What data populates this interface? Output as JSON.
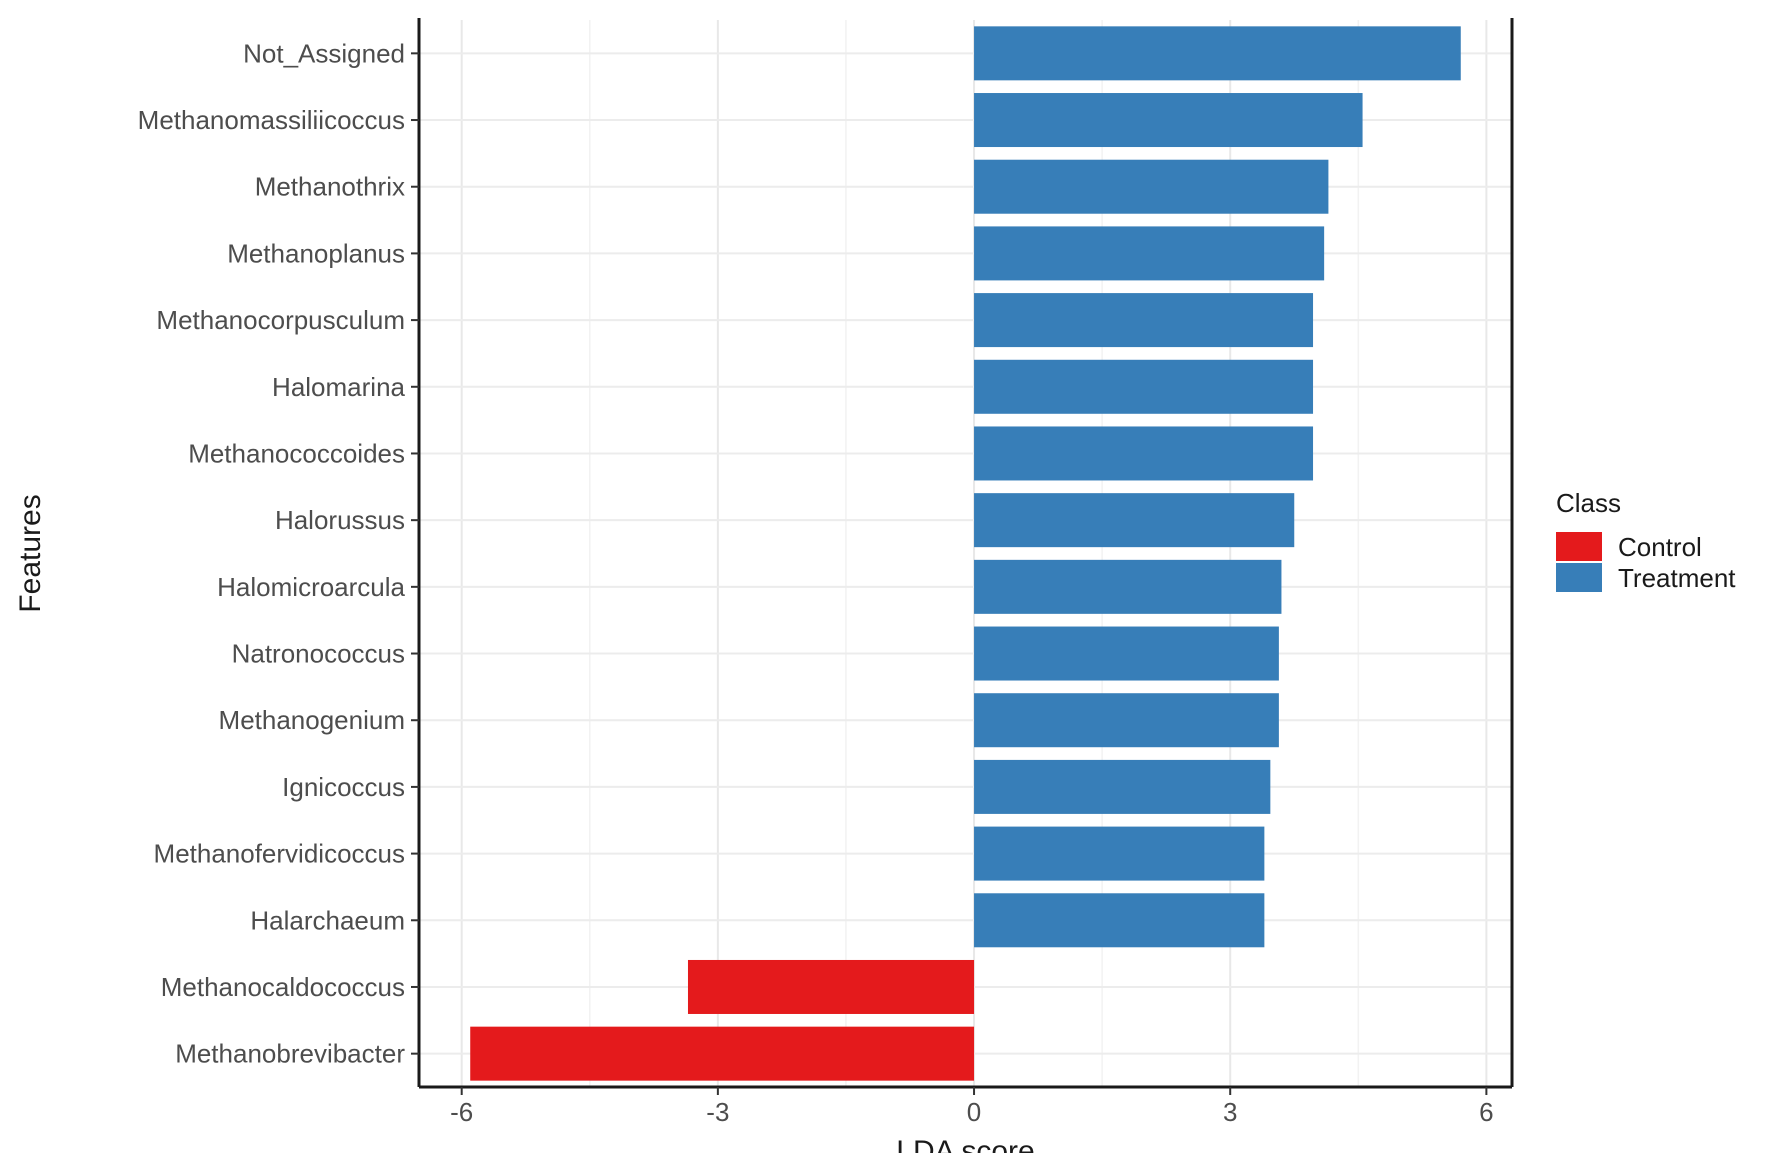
{
  "chart_data": {
    "type": "bar",
    "orientation": "horizontal",
    "xlabel": "LDA score",
    "ylabel": "Features",
    "xlim": [
      -6.5,
      6.3
    ],
    "xticks": [
      -6,
      -3,
      0,
      3,
      6
    ],
    "xtick_labels": [
      "-6",
      "-3",
      "0",
      "3",
      "6"
    ],
    "grid": true,
    "legend": {
      "title": "Class",
      "placement": "right",
      "entries": [
        {
          "name": "Control",
          "color": "#e41a1c"
        },
        {
          "name": "Treatment",
          "color": "#377eb8"
        }
      ]
    },
    "categories": [
      "Not_Assigned",
      "Methanomassiliicoccus",
      "Methanothrix",
      "Methanoplanus",
      "Methanocorpusculum",
      "Halomarina",
      "Methanococcoides",
      "Halorussus",
      "Halomicroarcula",
      "Natronococcus",
      "Methanogenium",
      "Ignicoccus",
      "Methanofervidicoccus",
      "Halarchaeum",
      "Methanocaldococcus",
      "Methanobrevibacter"
    ],
    "values": [
      5.7,
      4.55,
      4.15,
      4.1,
      3.97,
      3.97,
      3.97,
      3.75,
      3.6,
      3.57,
      3.57,
      3.47,
      3.4,
      3.4,
      -3.35,
      -5.9
    ],
    "classes": [
      "Treatment",
      "Treatment",
      "Treatment",
      "Treatment",
      "Treatment",
      "Treatment",
      "Treatment",
      "Treatment",
      "Treatment",
      "Treatment",
      "Treatment",
      "Treatment",
      "Treatment",
      "Treatment",
      "Control",
      "Control"
    ]
  }
}
